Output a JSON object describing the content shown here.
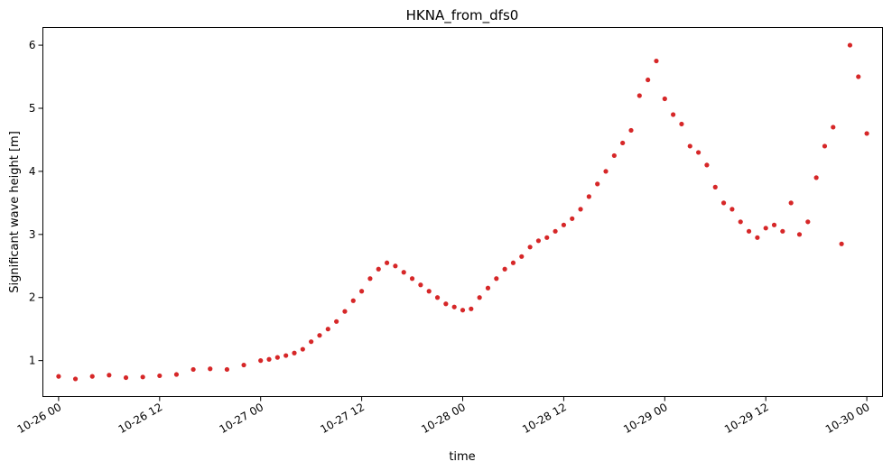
{
  "chart_data": {
    "type": "scatter",
    "title": "HKNA_from_dfs0",
    "xlabel": "time",
    "ylabel": "Significant wave height [m]",
    "xlim": [
      "2017-10-25 22:08",
      "2017-10-30 01:52"
    ],
    "ylim": [
      0.43,
      6.28
    ],
    "xticks": [
      "2017-10-26 00:00",
      "2017-10-26 12:00",
      "2017-10-27 00:00",
      "2017-10-27 12:00",
      "2017-10-28 00:00",
      "2017-10-28 12:00",
      "2017-10-29 00:00",
      "2017-10-29 12:00",
      "2017-10-30 00:00"
    ],
    "xtick_labels": [
      "10-26 00",
      "10-26 12",
      "10-27 00",
      "10-27 12",
      "10-28 00",
      "10-28 12",
      "10-29 00",
      "10-29 12",
      "10-30 00"
    ],
    "yticks": [
      1,
      2,
      3,
      4,
      5,
      6
    ],
    "ytick_labels": [
      "1",
      "2",
      "3",
      "4",
      "5",
      "6"
    ],
    "marker_color": "#d62728",
    "grid": false,
    "legend": "none",
    "series": [
      {
        "x": [
          "2017-10-26 00:00",
          "2017-10-26 02:00",
          "2017-10-26 04:00",
          "2017-10-26 06:00",
          "2017-10-26 08:00",
          "2017-10-26 10:00",
          "2017-10-26 12:00",
          "2017-10-26 14:00",
          "2017-10-26 16:00",
          "2017-10-26 18:00",
          "2017-10-26 20:00",
          "2017-10-26 22:00",
          "2017-10-27 00:00",
          "2017-10-27 01:00",
          "2017-10-27 02:00",
          "2017-10-27 03:00",
          "2017-10-27 04:00",
          "2017-10-27 05:00",
          "2017-10-27 06:00",
          "2017-10-27 07:00",
          "2017-10-27 08:00",
          "2017-10-27 09:00",
          "2017-10-27 10:00",
          "2017-10-27 11:00",
          "2017-10-27 12:00",
          "2017-10-27 13:00",
          "2017-10-27 14:00",
          "2017-10-27 15:00",
          "2017-10-27 16:00",
          "2017-10-27 17:00",
          "2017-10-27 18:00",
          "2017-10-27 19:00",
          "2017-10-27 20:00",
          "2017-10-27 21:00",
          "2017-10-27 22:00",
          "2017-10-27 23:00",
          "2017-10-28 00:00",
          "2017-10-28 01:00",
          "2017-10-28 02:00",
          "2017-10-28 03:00",
          "2017-10-28 04:00",
          "2017-10-28 05:00",
          "2017-10-28 06:00",
          "2017-10-28 07:00",
          "2017-10-28 08:00",
          "2017-10-28 09:00",
          "2017-10-28 10:00",
          "2017-10-28 11:00",
          "2017-10-28 12:00",
          "2017-10-28 13:00",
          "2017-10-28 14:00",
          "2017-10-28 15:00",
          "2017-10-28 16:00",
          "2017-10-28 17:00",
          "2017-10-28 18:00",
          "2017-10-28 19:00",
          "2017-10-28 20:00",
          "2017-10-28 21:00",
          "2017-10-28 22:00",
          "2017-10-28 23:00",
          "2017-10-29 00:00",
          "2017-10-29 01:00",
          "2017-10-29 02:00",
          "2017-10-29 03:00",
          "2017-10-29 04:00",
          "2017-10-29 05:00",
          "2017-10-29 06:00",
          "2017-10-29 07:00",
          "2017-10-29 08:00",
          "2017-10-29 09:00",
          "2017-10-29 10:00",
          "2017-10-29 11:00",
          "2017-10-29 12:00",
          "2017-10-29 13:00",
          "2017-10-29 14:00",
          "2017-10-29 15:00",
          "2017-10-29 16:00",
          "2017-10-29 17:00",
          "2017-10-29 18:00",
          "2017-10-29 19:00",
          "2017-10-29 20:00",
          "2017-10-29 21:00",
          "2017-10-29 22:00",
          "2017-10-29 23:00",
          "2017-10-30 00:00"
        ],
        "y": [
          0.75,
          0.71,
          0.75,
          0.77,
          0.73,
          0.74,
          0.76,
          0.78,
          0.86,
          0.87,
          0.86,
          0.93,
          1.0,
          1.02,
          1.05,
          1.08,
          1.12,
          1.18,
          1.3,
          1.4,
          1.5,
          1.62,
          1.78,
          1.95,
          2.1,
          2.3,
          2.45,
          2.55,
          2.5,
          2.4,
          2.3,
          2.2,
          2.1,
          2.0,
          1.9,
          1.85,
          1.8,
          1.82,
          2.0,
          2.15,
          2.3,
          2.45,
          2.55,
          2.65,
          2.8,
          2.9,
          2.95,
          3.05,
          3.15,
          3.25,
          3.4,
          3.6,
          3.8,
          4.0,
          4.25,
          4.45,
          4.65,
          5.2,
          5.45,
          5.75,
          5.15,
          4.9,
          4.75,
          4.4,
          4.3,
          4.1,
          3.75,
          3.5,
          3.4,
          3.2,
          3.05,
          2.95,
          3.1,
          3.15,
          3.05,
          3.5,
          3.0,
          3.2,
          3.9,
          4.4,
          4.7,
          2.85,
          6.0,
          5.5,
          4.6
        ]
      }
    ]
  }
}
